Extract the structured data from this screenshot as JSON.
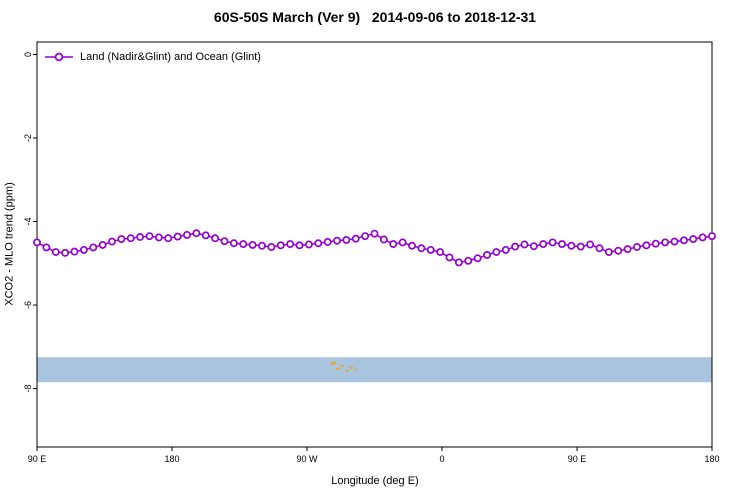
{
  "chart_data": {
    "type": "line",
    "title": "60S-50S March (Ver 9)   2014-09-06 to 2018-12-31",
    "xlabel": "Longitude (deg E)",
    "ylabel": "XCO2 - MLO trend (ppm)",
    "grid": false,
    "legend_position": "top-left",
    "xlim": [
      90,
      540
    ],
    "ylim": [
      0.3,
      -9.4
    ],
    "x_ticks": [
      {
        "deg": 90,
        "label": "90 E"
      },
      {
        "deg": 180,
        "label": "180"
      },
      {
        "deg": 270,
        "label": "90 W"
      },
      {
        "deg": 360,
        "label": "0"
      },
      {
        "deg": 450,
        "label": "90 E"
      },
      {
        "deg": 540,
        "label": "180"
      }
    ],
    "y_ticks": [
      {
        "v": 0,
        "label": "0"
      },
      {
        "v": -2,
        "label": "-2"
      },
      {
        "v": -4,
        "label": "-4"
      },
      {
        "v": -6,
        "label": "-6"
      },
      {
        "v": -8,
        "label": "-8"
      }
    ],
    "series": [
      {
        "name": "Land (Nadir&Glint) and Ocean (Glint)",
        "color": "#9400d3",
        "marker": "open-circle",
        "x": [
          90,
          96.25,
          102.5,
          108.75,
          115,
          121.25,
          127.5,
          133.75,
          140,
          146.25,
          152.5,
          158.75,
          165,
          171.25,
          177.5,
          183.75,
          190,
          196.25,
          202.5,
          208.75,
          215,
          221.25,
          227.5,
          233.75,
          240,
          246.25,
          252.5,
          258.75,
          265,
          271.25,
          277.5,
          283.75,
          290,
          296.25,
          302.5,
          308.75,
          315,
          321.25,
          327.5,
          333.75,
          340,
          346.25,
          352.5,
          358.75,
          365,
          371.25,
          377.5,
          383.75,
          390,
          396.25,
          402.5,
          408.75,
          415,
          421.25,
          427.5,
          433.75,
          440,
          446.25,
          452.5,
          458.75,
          465,
          471.25,
          477.5,
          483.75,
          490,
          496.25,
          502.5,
          508.75,
          515,
          521.25,
          527.5,
          533.75,
          540
        ],
        "y": [
          -4.5,
          -4.62,
          -4.73,
          -4.75,
          -4.72,
          -4.68,
          -4.62,
          -4.56,
          -4.48,
          -4.42,
          -4.4,
          -4.37,
          -4.35,
          -4.38,
          -4.4,
          -4.36,
          -4.32,
          -4.28,
          -4.33,
          -4.4,
          -4.47,
          -4.52,
          -4.54,
          -4.56,
          -4.58,
          -4.61,
          -4.57,
          -4.54,
          -4.57,
          -4.55,
          -4.52,
          -4.49,
          -4.46,
          -4.44,
          -4.41,
          -4.35,
          -4.29,
          -4.43,
          -4.54,
          -4.5,
          -4.58,
          -4.64,
          -4.68,
          -4.73,
          -4.86,
          -4.98,
          -4.94,
          -4.88,
          -4.8,
          -4.73,
          -4.68,
          -4.6,
          -4.55,
          -4.59,
          -4.54,
          -4.5,
          -4.54,
          -4.58,
          -4.6,
          -4.55,
          -4.64,
          -4.73,
          -4.7,
          -4.66,
          -4.61,
          -4.57,
          -4.53,
          -4.5,
          -4.48,
          -4.45,
          -4.42,
          -4.38,
          -4.35
        ]
      }
    ],
    "map_band": {
      "description": "latitude band map strip 60S-50S, mostly ocean",
      "y_top": -7.25,
      "y_bottom": -7.85,
      "ocean_color": "#a9c4de",
      "land_color": "#e3a93c",
      "land_specks": [
        {
          "deg": 287.5,
          "fy": 0.18,
          "w": 5,
          "h": 3
        },
        {
          "deg": 290.5,
          "fy": 0.42,
          "w": 4,
          "h": 2
        },
        {
          "deg": 293.5,
          "fy": 0.3,
          "w": 3,
          "h": 2
        },
        {
          "deg": 296.5,
          "fy": 0.5,
          "w": 3,
          "h": 2
        },
        {
          "deg": 299.5,
          "fy": 0.38,
          "w": 4,
          "h": 2
        },
        {
          "deg": 302.5,
          "fy": 0.46,
          "w": 2,
          "h": 2
        }
      ]
    }
  }
}
